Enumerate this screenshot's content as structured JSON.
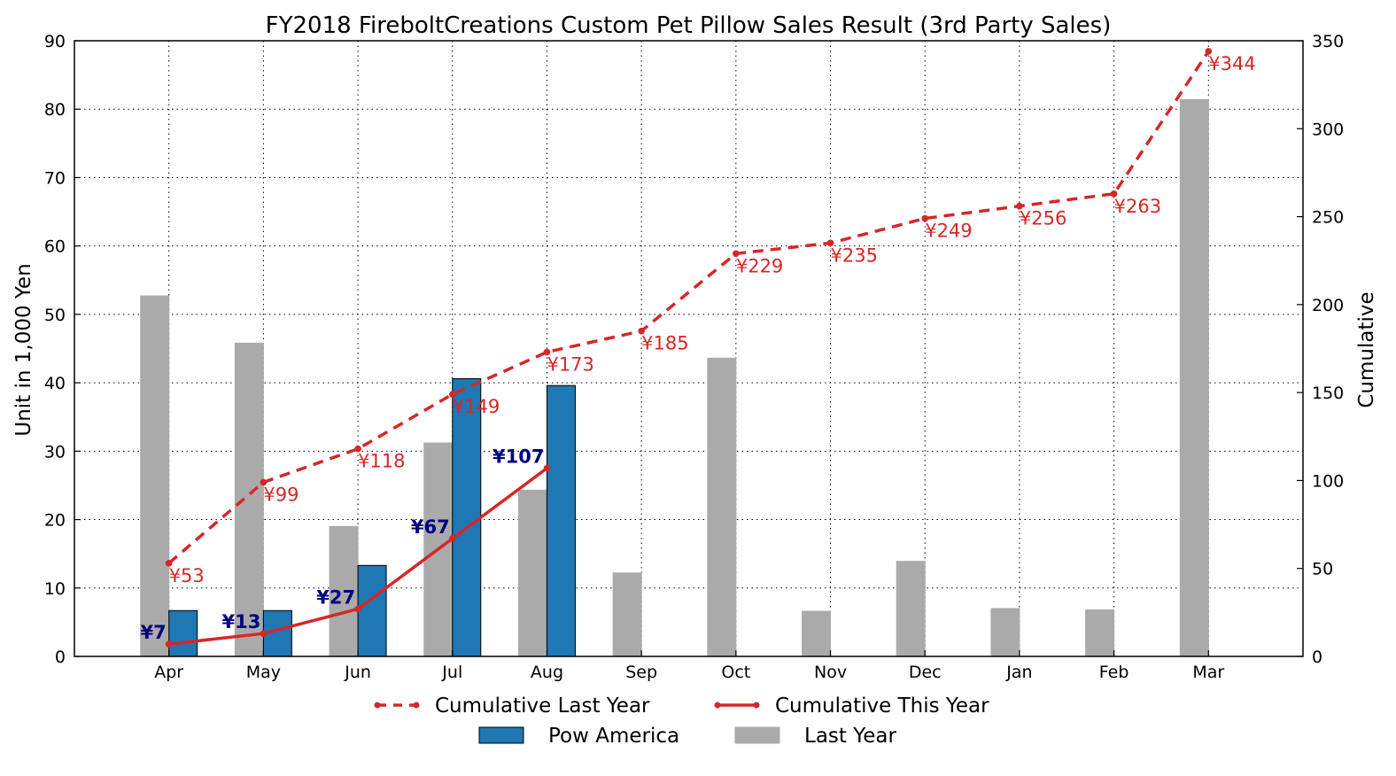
{
  "chart_data": {
    "type": "bar",
    "title": "FY2018 FireboltCreations Custom Pet Pillow Sales Result (3rd Party Sales)",
    "ylabel": "Unit in 1,000 Yen",
    "y2label": "Cumulative",
    "ylim": [
      0,
      90
    ],
    "y2lim": [
      0,
      350
    ],
    "yticks": [
      "0",
      "10",
      "20",
      "30",
      "40",
      "50",
      "60",
      "70",
      "80",
      "90"
    ],
    "y2ticks": [
      "0",
      "50",
      "100",
      "150",
      "200",
      "250",
      "300",
      "350"
    ],
    "categories": [
      "Apr",
      "May",
      "Jun",
      "Jul",
      "Aug",
      "Sep",
      "Oct",
      "Nov",
      "Dec",
      "Jan",
      "Feb",
      "Mar"
    ],
    "grid": true,
    "legend_position": "bottom",
    "series": [
      {
        "name": "Last Year",
        "kind": "bar",
        "axis": "left",
        "color": "#aaaaaa",
        "values": [
          52.7,
          45.8,
          19.0,
          31.2,
          24.3,
          12.2,
          43.6,
          6.6,
          13.9,
          7.0,
          6.8,
          81.4
        ]
      },
      {
        "name": "Pow America",
        "kind": "bar",
        "axis": "left",
        "color": "#1f77b4",
        "values": [
          6.7,
          6.7,
          13.3,
          40.6,
          39.6,
          null,
          null,
          null,
          null,
          null,
          null,
          null
        ]
      },
      {
        "name": "Cumulative Last Year",
        "kind": "line",
        "style": "dashed",
        "axis": "right",
        "color": "#d62728",
        "values": [
          53,
          99,
          118,
          149,
          173,
          185,
          229,
          235,
          249,
          256,
          263,
          344
        ],
        "labels": [
          "¥53",
          "¥99",
          "¥118",
          "¥149",
          "¥173",
          "¥185",
          "¥229",
          "¥235",
          "¥249",
          "¥256",
          "¥263",
          "¥344"
        ]
      },
      {
        "name": "Cumulative This Year",
        "kind": "line",
        "style": "solid",
        "axis": "right",
        "color": "#d62728",
        "label_color": "#000080",
        "values": [
          7,
          13,
          27,
          67,
          107,
          null,
          null,
          null,
          null,
          null,
          null,
          null
        ],
        "labels": [
          "¥7",
          "¥13",
          "¥27",
          "¥67",
          "¥107"
        ]
      }
    ],
    "legend": [
      "Cumulative Last Year",
      "Cumulative This Year",
      "Pow America",
      "Last Year"
    ]
  }
}
